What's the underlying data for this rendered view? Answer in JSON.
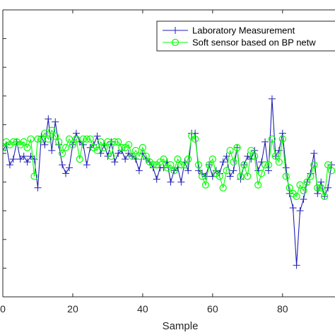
{
  "chart_data": {
    "type": "line",
    "xlabel": "Sample",
    "ylabel": "",
    "xlim": [
      0,
      95
    ],
    "ylim": [
      -2,
      8
    ],
    "xticks": [
      0,
      20,
      40,
      60,
      80
    ],
    "xtick_labels": [
      "0",
      "20",
      "40",
      "60",
      "80"
    ],
    "yticks": [
      -2,
      -1,
      0,
      1,
      2,
      3,
      4,
      5,
      6,
      7,
      8
    ],
    "grid": false,
    "legend_position": "top-right",
    "series": [
      {
        "name": "Laboratory Measurement",
        "color": "#1f1fb4",
        "marker": "plus",
        "x": [
          0,
          1,
          2,
          3,
          4,
          5,
          6,
          7,
          8,
          9,
          10,
          11,
          12,
          13,
          14,
          15,
          16,
          17,
          18,
          19,
          20,
          21,
          22,
          23,
          24,
          25,
          26,
          27,
          28,
          29,
          30,
          31,
          32,
          33,
          34,
          35,
          36,
          37,
          38,
          39,
          40,
          41,
          42,
          43,
          44,
          45,
          46,
          47,
          48,
          49,
          50,
          51,
          52,
          53,
          54,
          55,
          56,
          57,
          58,
          59,
          60,
          61,
          62,
          63,
          64,
          65,
          66,
          67,
          68,
          69,
          70,
          71,
          72,
          73,
          74,
          75,
          76,
          77,
          78,
          79,
          80,
          81,
          82,
          83,
          84,
          85,
          86,
          87,
          88,
          89,
          90,
          91,
          92,
          93,
          94
        ],
        "y": [
          3.1,
          3.3,
          2.6,
          2.8,
          3.4,
          2.8,
          2.9,
          2.7,
          2.9,
          2.8,
          1.8,
          3.6,
          3.3,
          4.2,
          3.1,
          4.1,
          3.3,
          2.6,
          2.3,
          2.5,
          3.3,
          3.7,
          3.4,
          3.3,
          2.6,
          3.2,
          3.3,
          3.6,
          3.0,
          3.3,
          2.9,
          3.4,
          2.7,
          3.0,
          3.1,
          2.8,
          3.0,
          2.9,
          2.8,
          2.4,
          3.0,
          2.8,
          2.7,
          2.5,
          2.1,
          2.5,
          2.5,
          2.7,
          2.0,
          2.4,
          2.5,
          2.0,
          2.7,
          2.4,
          3.7,
          3.7,
          2.4,
          2.3,
          2.2,
          2.6,
          2.2,
          2.4,
          2.3,
          2.7,
          2.9,
          2.2,
          2.4,
          3.2,
          2.1,
          2.6,
          2.9,
          2.8,
          3.1,
          2.4,
          2.7,
          3.4,
          2.4,
          4.9,
          2.9,
          3.1,
          3.7,
          2.5,
          1.6,
          1.1,
          -0.9,
          1.0,
          1.4,
          2.0,
          2.3,
          3.0,
          1.6,
          2.0,
          1.5,
          1.8,
          2.6
        ]
      },
      {
        "name": "Soft sensor based on BP netw",
        "color": "#00ff00",
        "marker": "circle",
        "x": [
          0,
          1,
          2,
          3,
          4,
          5,
          6,
          7,
          8,
          9,
          10,
          11,
          12,
          13,
          14,
          15,
          16,
          17,
          18,
          19,
          20,
          21,
          22,
          23,
          24,
          25,
          26,
          27,
          28,
          29,
          30,
          31,
          32,
          33,
          34,
          35,
          36,
          37,
          38,
          39,
          40,
          41,
          42,
          43,
          44,
          45,
          46,
          47,
          48,
          49,
          50,
          51,
          52,
          53,
          54,
          55,
          56,
          57,
          58,
          59,
          60,
          61,
          62,
          63,
          64,
          65,
          66,
          67,
          68,
          69,
          70,
          71,
          72,
          73,
          74,
          75,
          76,
          77,
          78,
          79,
          80,
          81,
          82,
          83,
          84,
          85,
          86,
          87,
          88,
          89,
          90,
          91,
          92,
          93,
          94
        ],
        "y": [
          3.2,
          3.4,
          3.3,
          3.4,
          3.4,
          3.3,
          3.4,
          3.2,
          3.5,
          2.2,
          3.5,
          3.5,
          3.7,
          3.5,
          3.8,
          3.6,
          3.4,
          3.0,
          3.2,
          3.5,
          3.3,
          3.5,
          2.8,
          3.5,
          3.5,
          3.5,
          3.2,
          3.1,
          3.4,
          3.2,
          3.4,
          2.9,
          3.4,
          3.4,
          3.2,
          3.2,
          3.3,
          2.9,
          3.1,
          2.9,
          3.2,
          2.9,
          2.7,
          2.6,
          2.6,
          2.7,
          2.8,
          2.5,
          2.6,
          2.4,
          2.8,
          2.6,
          2.6,
          2.8,
          3.6,
          3.5,
          2.6,
          2.2,
          1.9,
          2.6,
          2.8,
          2.3,
          2.2,
          1.8,
          2.4,
          3.1,
          2.7,
          3.2,
          2.2,
          2.6,
          2.2,
          3.1,
          2.9,
          1.9,
          2.3,
          2.6,
          2.6,
          3.5,
          2.9,
          2.7,
          3.5,
          2.2,
          1.8,
          1.6,
          1.5,
          1.9,
          1.7,
          2.0,
          2.2,
          2.6,
          1.8,
          1.8,
          1.5,
          2.6,
          2.4
        ]
      }
    ]
  }
}
